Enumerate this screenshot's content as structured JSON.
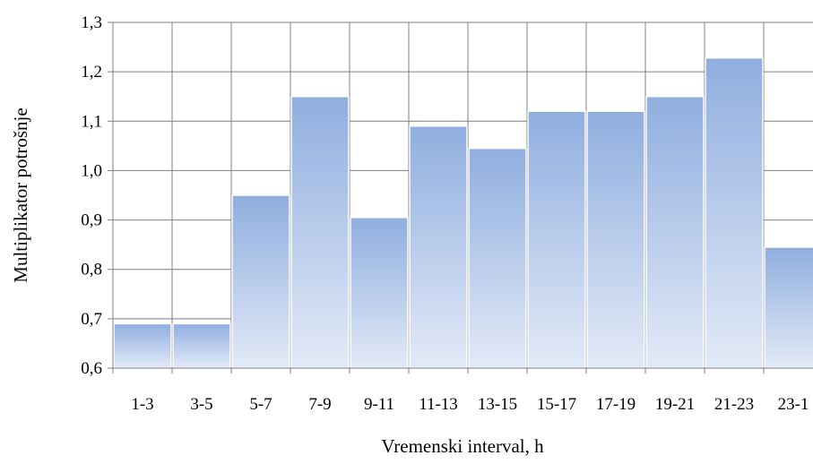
{
  "chart_data": {
    "type": "bar",
    "title": "",
    "xlabel": "Vremenski interval, h",
    "ylabel": "Multiplikator potrošnje",
    "categories": [
      "1-3",
      "3-5",
      "5-7",
      "7-9",
      "9-11",
      "11-13",
      "13-15",
      "15-17",
      "17-19",
      "19-21",
      "21-23",
      "23-1"
    ],
    "values": [
      0.69,
      0.69,
      0.95,
      1.15,
      0.905,
      1.09,
      1.045,
      1.12,
      1.12,
      1.15,
      1.228,
      0.845
    ],
    "ylim": [
      0.6,
      1.3
    ],
    "yticks": [
      "0,6",
      "0,7",
      "0,8",
      "0,9",
      "1,0",
      "1,1",
      "1,2",
      "1,3"
    ],
    "grid": true,
    "legend": "none",
    "bar_color_top": "#8faedf",
    "bar_color_bottom": "#e3eaf7",
    "grid_color": "#7f7f7f"
  }
}
